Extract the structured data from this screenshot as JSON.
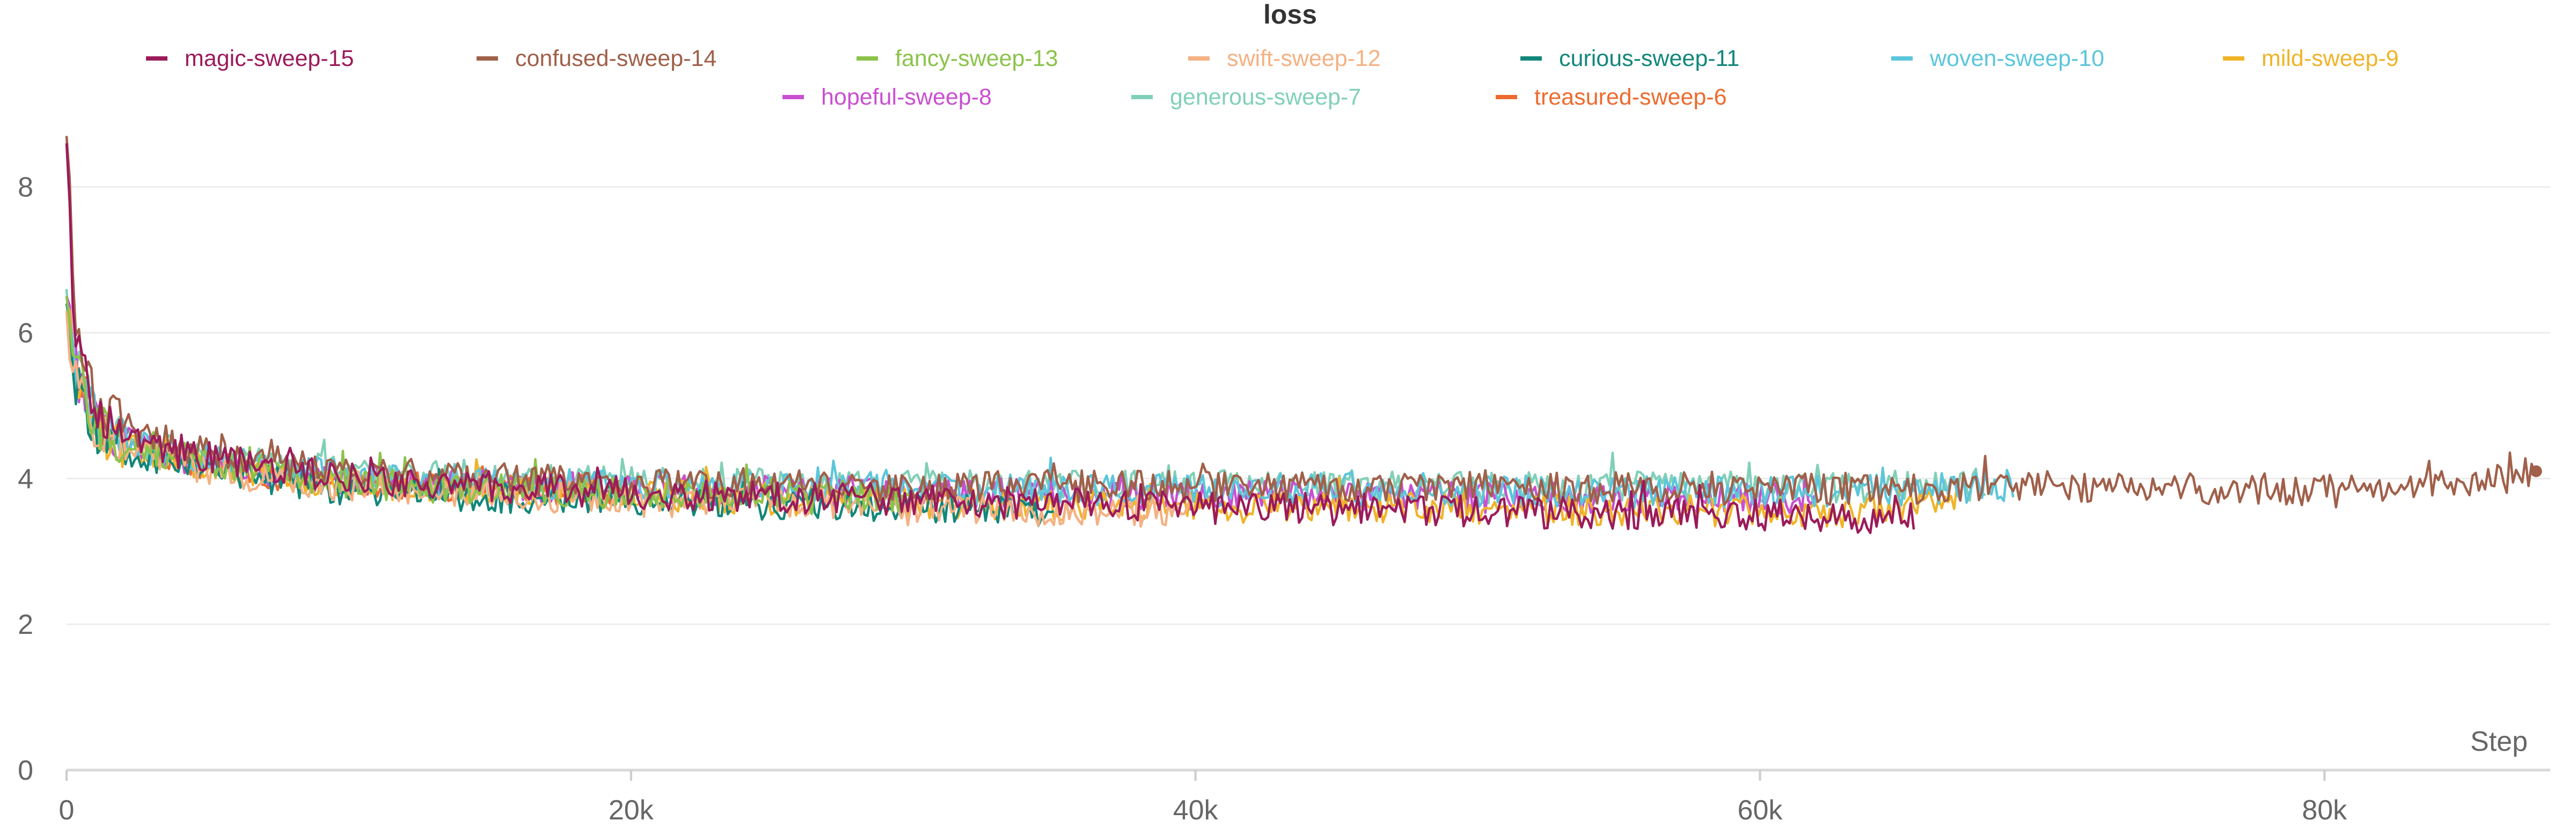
{
  "chart_data": {
    "type": "line",
    "title": "loss",
    "xlabel": "Step",
    "ylabel": "",
    "xlim": [
      0,
      88000
    ],
    "ylim": [
      0,
      8.8
    ],
    "x_ticks": [
      0,
      20000,
      40000,
      60000,
      80000
    ],
    "x_tick_labels": [
      "0",
      "20k",
      "40k",
      "60k",
      "80k"
    ],
    "y_ticks": [
      0,
      2,
      4,
      6,
      8
    ],
    "y_tick_labels": [
      "0",
      "2",
      "4",
      "6",
      "8"
    ],
    "grid": true,
    "legend_position": "top",
    "series": [
      {
        "name": "magic-sweep-15",
        "color": "#9b1b5a",
        "x": [
          0,
          300,
          1000,
          2000,
          4000,
          7000,
          10000,
          15000,
          20000,
          25000,
          30000,
          35000,
          40000,
          45000,
          50000,
          55000,
          60000,
          65000,
          65500
        ],
        "y": [
          8.6,
          6.0,
          4.9,
          4.6,
          4.35,
          4.15,
          4.0,
          3.9,
          3.8,
          3.75,
          3.7,
          3.65,
          3.6,
          3.58,
          3.55,
          3.52,
          3.5,
          3.45,
          3.45
        ]
      },
      {
        "name": "confused-sweep-14",
        "color": "#a0604a",
        "x": [
          0,
          300,
          1000,
          2000,
          4000,
          7000,
          10000,
          15000,
          20000,
          25000,
          30000,
          35000,
          40000,
          45000,
          50000,
          55000,
          60000,
          65000,
          70000,
          75000,
          80000,
          85000,
          87500
        ],
        "y": [
          8.7,
          6.2,
          5.0,
          4.7,
          4.45,
          4.25,
          4.1,
          4.0,
          3.95,
          3.92,
          3.9,
          3.9,
          3.88,
          3.88,
          3.87,
          3.87,
          3.86,
          3.86,
          3.9,
          3.85,
          3.85,
          3.9,
          4.1
        ]
      },
      {
        "name": "fancy-sweep-13",
        "color": "#8bc34a",
        "x": [
          0,
          300,
          1000,
          2000,
          4000,
          7000,
          10000,
          15000,
          20000,
          25000,
          30000
        ],
        "y": [
          6.5,
          5.5,
          4.8,
          4.5,
          4.3,
          4.1,
          3.95,
          3.85,
          3.8,
          3.78,
          3.75
        ]
      },
      {
        "name": "swift-sweep-12",
        "color": "#f4b183",
        "x": [
          0,
          300,
          1000,
          2000,
          4000,
          7000,
          10000,
          15000,
          20000,
          25000,
          30000,
          35000,
          40000
        ],
        "y": [
          6.3,
          5.4,
          4.7,
          4.4,
          4.2,
          4.0,
          3.9,
          3.8,
          3.7,
          3.65,
          3.6,
          3.55,
          3.55
        ]
      },
      {
        "name": "curious-sweep-11",
        "color": "#12877a",
        "x": [
          0,
          300,
          1000,
          2000,
          4000,
          7000,
          10000,
          15000,
          20000,
          25000,
          30000,
          35000
        ],
        "y": [
          6.4,
          5.4,
          4.7,
          4.4,
          4.2,
          4.0,
          3.85,
          3.75,
          3.7,
          3.65,
          3.6,
          3.55
        ]
      },
      {
        "name": "woven-sweep-10",
        "color": "#5bc6dc",
        "x": [
          0,
          300,
          1000,
          2000,
          4000,
          7000,
          10000,
          15000,
          20000,
          25000,
          30000,
          35000,
          40000,
          45000,
          50000,
          55000,
          60000,
          65000,
          69000
        ],
        "y": [
          6.5,
          5.5,
          4.8,
          4.5,
          4.3,
          4.15,
          4.05,
          3.95,
          3.9,
          3.88,
          3.85,
          3.85,
          3.85,
          3.85,
          3.82,
          3.82,
          3.82,
          3.85,
          3.9
        ]
      },
      {
        "name": "mild-sweep-9",
        "color": "#f0b429",
        "x": [
          0,
          300,
          1000,
          2000,
          4000,
          7000,
          10000,
          15000,
          20000,
          25000,
          30000,
          35000,
          40000,
          45000,
          50000,
          55000,
          60000,
          65000,
          67000
        ],
        "y": [
          6.4,
          5.4,
          4.7,
          4.45,
          4.25,
          4.05,
          3.95,
          3.85,
          3.78,
          3.72,
          3.68,
          3.64,
          3.62,
          3.6,
          3.58,
          3.56,
          3.55,
          3.55,
          3.8
        ]
      },
      {
        "name": "hopeful-sweep-8",
        "color": "#c94fd1",
        "x": [
          0,
          300,
          1000,
          2000,
          4000,
          7000,
          10000,
          15000,
          20000,
          25000,
          30000,
          35000,
          40000,
          45000,
          50000,
          55000,
          60000,
          62000
        ],
        "y": [
          6.5,
          5.5,
          4.8,
          4.5,
          4.3,
          4.12,
          4.0,
          3.9,
          3.85,
          3.82,
          3.8,
          3.78,
          3.76,
          3.75,
          3.74,
          3.74,
          3.73,
          3.73
        ]
      },
      {
        "name": "generous-sweep-7",
        "color": "#80d0b8",
        "x": [
          0,
          300,
          1000,
          2000,
          4000,
          7000,
          10000,
          15000,
          20000,
          25000,
          30000,
          35000,
          40000,
          45000,
          50000,
          55000,
          60000,
          65000,
          68000
        ],
        "y": [
          6.6,
          5.6,
          4.85,
          4.55,
          4.35,
          4.2,
          4.1,
          4.0,
          3.95,
          3.92,
          3.9,
          3.9,
          3.9,
          3.9,
          3.88,
          3.88,
          3.88,
          3.9,
          3.92
        ]
      },
      {
        "name": "treasured-sweep-6",
        "color": "#ee6a2e",
        "x": [
          0,
          300,
          1000,
          2000,
          4000,
          7000,
          10000,
          15000,
          20000
        ],
        "y": [
          6.4,
          5.4,
          4.75,
          4.45,
          4.25,
          4.05,
          3.95,
          3.88,
          3.82
        ]
      }
    ]
  }
}
